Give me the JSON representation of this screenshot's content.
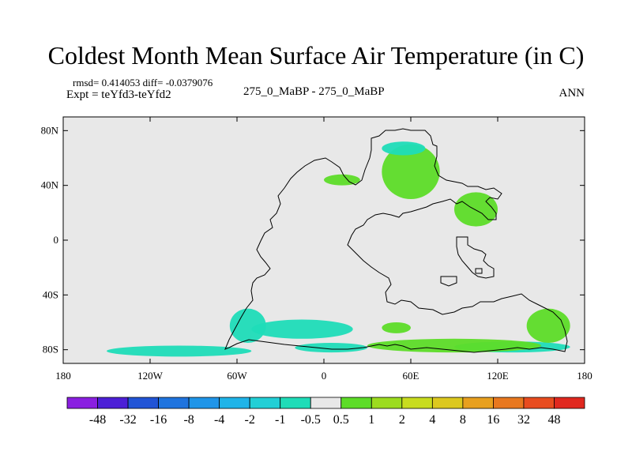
{
  "header": {
    "title": "Coldest Month Mean Surface Air Temperature (in C)",
    "rmsd_line": "rmsd= 0.414053 diff= -0.0379076",
    "expt_line": "Expt = teYfd3-teYfd2",
    "center_label": "275_0_MaBP - 275_0_MaBP",
    "season": "ANN"
  },
  "chart_data": {
    "type": "heatmap",
    "title": "Coldest Month Mean Surface Air Temperature (in C)",
    "x_axis": {
      "range": [
        -180,
        180
      ],
      "ticks": [
        -180,
        -120,
        -60,
        0,
        60,
        120,
        180
      ],
      "tick_labels": [
        "180",
        "120W",
        "60W",
        "0",
        "60E",
        "120E",
        "180"
      ]
    },
    "y_axis": {
      "range": [
        -90,
        90
      ],
      "ticks": [
        80,
        40,
        0,
        -40,
        -80
      ],
      "tick_labels": [
        "80N",
        "40N",
        "0",
        "40S",
        "80S"
      ]
    },
    "colorbar": {
      "labels": [
        "-48",
        "-32",
        "-16",
        "-8",
        "-4",
        "-2",
        "-1",
        "-0.5",
        "0.5",
        "1",
        "2",
        "4",
        "8",
        "16",
        "32",
        "48"
      ],
      "colors": [
        "#8a1fe0",
        "#4c1fd6",
        "#2154d6",
        "#1f74de",
        "#1f95e8",
        "#1fb4e8",
        "#22cfd6",
        "#1fdcb8",
        "#e8e8e8",
        "#5ddc28",
        "#9cdc1f",
        "#c8dc1f",
        "#dcc81f",
        "#e8a01f",
        "#e8781f",
        "#e84c1f",
        "#e0281f"
      ]
    },
    "background_color": "#e8e8e8",
    "coastline_color": "#000000",
    "anomaly_regions": [
      {
        "name": "antarctic-belt-west",
        "lon": [
          -150,
          -50
        ],
        "lat": [
          -85,
          -77
        ],
        "value": -0.7
      },
      {
        "name": "antarctic-belt-center",
        "lon": [
          -20,
          30
        ],
        "lat": [
          -82,
          -75
        ],
        "value": -0.7
      },
      {
        "name": "antarctic-belt-east",
        "lon": [
          90,
          170
        ],
        "lat": [
          -82,
          -74
        ],
        "value": -0.7
      },
      {
        "name": "south-atlantic-cold",
        "lon": [
          -50,
          20
        ],
        "lat": [
          -72,
          -58
        ],
        "value": -0.7
      },
      {
        "name": "patagonia-cold",
        "lon": [
          -65,
          -40
        ],
        "lat": [
          -75,
          -50
        ],
        "value": -0.7
      },
      {
        "name": "antarctic-warm-band",
        "lon": [
          30,
          150
        ],
        "lat": [
          -82,
          -72
        ],
        "value": 0.7
      },
      {
        "name": "southern-ocean-warm",
        "lon": [
          40,
          60
        ],
        "lat": [
          -68,
          -60
        ],
        "value": 0.7
      },
      {
        "name": "australia-east-warm",
        "lon": [
          140,
          170
        ],
        "lat": [
          -75,
          -50
        ],
        "value": 0.7
      },
      {
        "name": "siberia-warm",
        "lon": [
          40,
          80
        ],
        "lat": [
          30,
          70
        ],
        "value": 0.7
      },
      {
        "name": "east-asia-warm",
        "lon": [
          90,
          120
        ],
        "lat": [
          10,
          35
        ],
        "value": 0.7
      },
      {
        "name": "siberia-cold",
        "lon": [
          40,
          70
        ],
        "lat": [
          62,
          72
        ],
        "value": -0.7
      },
      {
        "name": "north-america-warm",
        "lon": [
          0,
          25
        ],
        "lat": [
          40,
          48
        ],
        "value": 0.7
      }
    ]
  }
}
